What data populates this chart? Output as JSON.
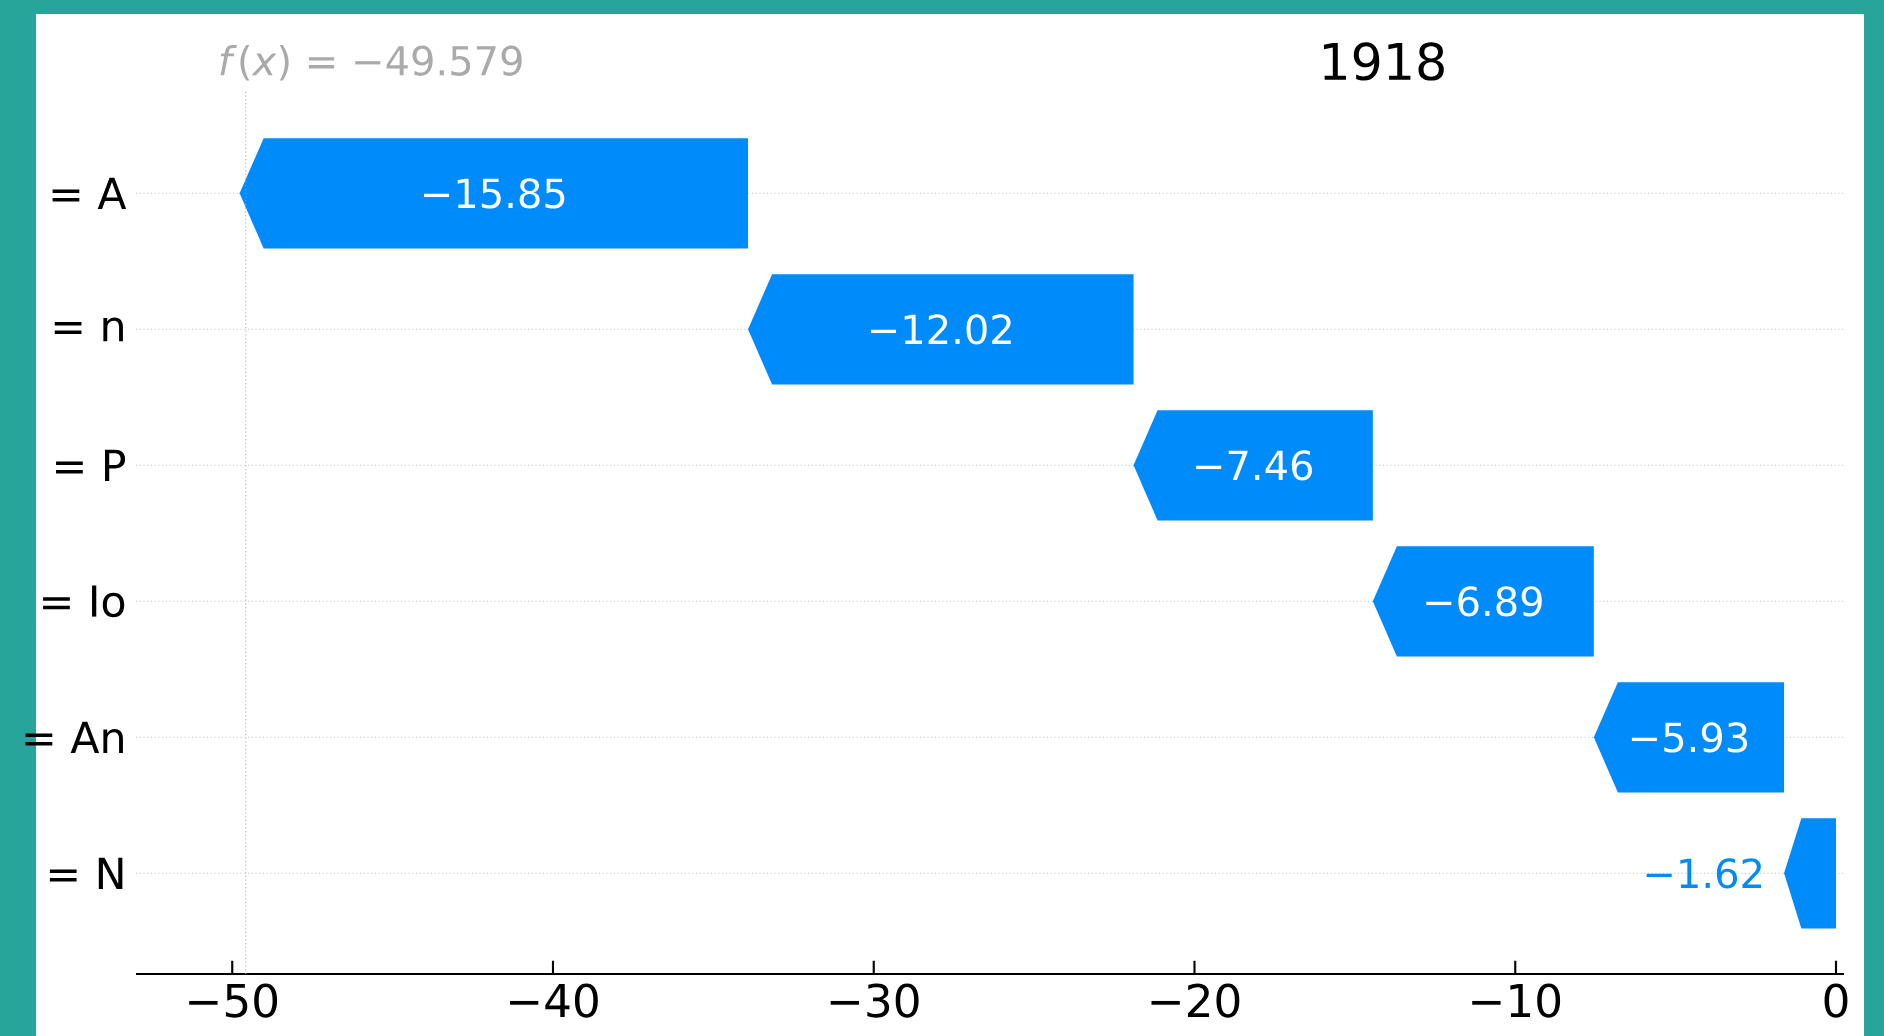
{
  "chart_data": {
    "type": "bar",
    "orientation": "horizontal",
    "title": "1918",
    "categories": [
      "= A",
      "= n",
      "= P",
      "= Io",
      "= An",
      "= N"
    ],
    "values": [
      -15.85,
      -12.02,
      -7.46,
      -6.89,
      -5.93,
      -1.62
    ],
    "base": [
      -33.92,
      -21.9,
      -14.44,
      -7.55,
      -1.62,
      0
    ],
    "color": "#008bfb",
    "data_labels": true,
    "grid": "y",
    "xlim": [
      -53,
      0.25
    ],
    "xticks": [
      {
        "value": -50,
        "label": "−50"
      },
      {
        "value": -40,
        "label": "−40"
      },
      {
        "value": -30,
        "label": "−30"
      },
      {
        "value": -20,
        "label": "−20"
      },
      {
        "value": -10,
        "label": "−10"
      },
      {
        "value": 0,
        "label": "0"
      }
    ],
    "ref_lines": [
      {
        "axis": "x",
        "value": -49.579,
        "label": "*f*(*x*) = −49.579",
        "color": "#aaaaaa",
        "line_style": "dotted"
      }
    ]
  }
}
